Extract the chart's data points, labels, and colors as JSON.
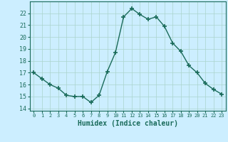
{
  "x": [
    0,
    1,
    2,
    3,
    4,
    5,
    6,
    7,
    8,
    9,
    10,
    11,
    12,
    13,
    14,
    15,
    16,
    17,
    18,
    19,
    20,
    21,
    22,
    23
  ],
  "y": [
    17.0,
    16.5,
    16.0,
    15.7,
    15.1,
    15.0,
    15.0,
    14.5,
    15.1,
    17.1,
    18.7,
    21.7,
    22.4,
    21.9,
    21.5,
    21.7,
    20.9,
    19.5,
    18.8,
    17.6,
    17.0,
    16.1,
    15.6,
    15.2
  ],
  "line_color": "#1a6b5a",
  "marker": "+",
  "markersize": 4,
  "markeredgewidth": 1.2,
  "linewidth": 1.0,
  "bg_color": "#cceeff",
  "grid_color": "#aad4cc",
  "tick_color": "#1a6b5a",
  "xlabel": "Humidex (Indice chaleur)",
  "xlabel_fontsize": 7,
  "ylabel_ticks": [
    14,
    15,
    16,
    17,
    18,
    19,
    20,
    21,
    22
  ],
  "xlim": [
    -0.5,
    23.5
  ],
  "ylim": [
    13.8,
    23.0
  ],
  "xtick_labels": [
    "0",
    "1",
    "2",
    "3",
    "4",
    "5",
    "6",
    "7",
    "8",
    "9",
    "10",
    "11",
    "12",
    "13",
    "14",
    "15",
    "16",
    "17",
    "18",
    "19",
    "20",
    "21",
    "22",
    "23"
  ],
  "font_family": "monospace",
  "ytick_fontsize": 6,
  "xtick_fontsize": 5
}
